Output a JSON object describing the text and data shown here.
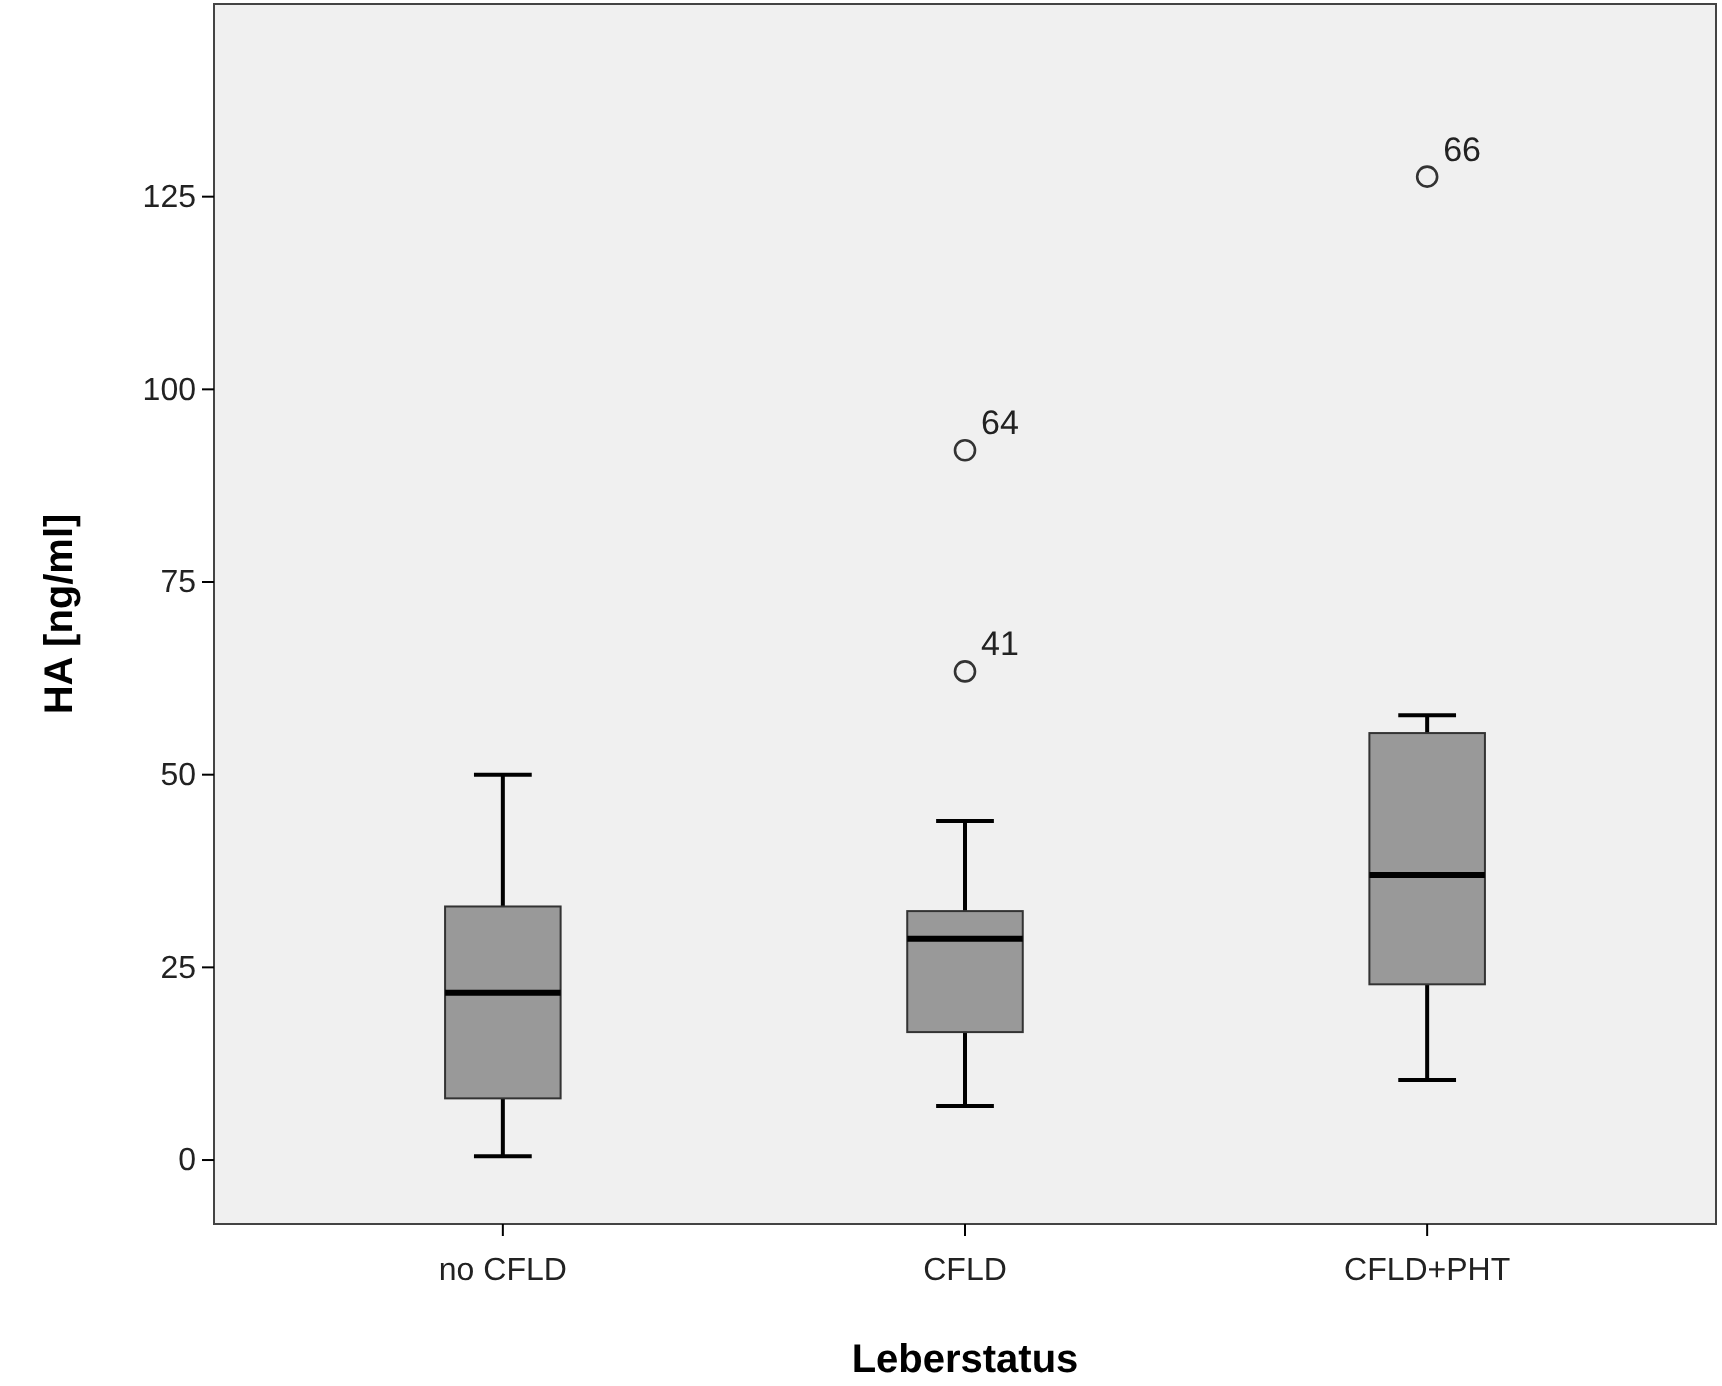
{
  "chart_data": {
    "type": "box",
    "xlabel": "Leberstatus",
    "ylabel": "HA [ng/ml]",
    "categories": [
      "no CFLD",
      "CFLD",
      "CFLD+PHT"
    ],
    "boxes": [
      {
        "low": 0.5,
        "q1": 8.0,
        "median": 21.7,
        "q3": 32.9,
        "high": 50
      },
      {
        "low": 7.0,
        "q1": 16.6,
        "median": 28.7,
        "q3": 32.3,
        "high": 44,
        "outliers": [
          63.4,
          92.1
        ]
      },
      {
        "low": 10.4,
        "q1": 22.8,
        "median": 37,
        "q3": 55.4,
        "high": 57.7,
        "outliers": [
          127.6
        ]
      }
    ],
    "color": "#999999",
    "ylim": [
      -8.3,
      150
    ],
    "yticks": [
      0,
      25,
      50,
      75,
      100,
      125
    ],
    "grid": false,
    "annotations": [
      "41",
      "64",
      "66"
    ]
  }
}
